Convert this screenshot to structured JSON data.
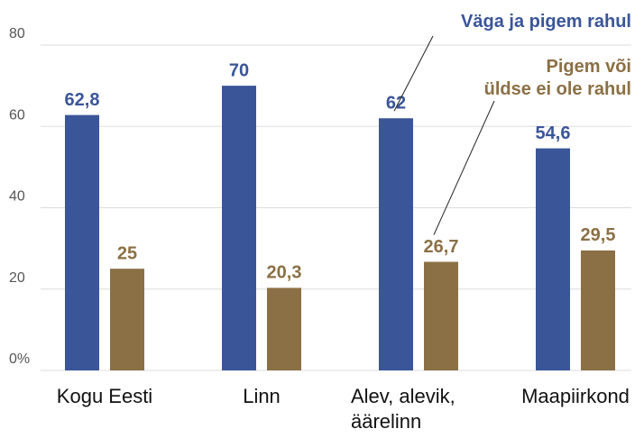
{
  "chart_data": {
    "type": "bar",
    "categories": [
      "Kogu Eesti",
      "Linn",
      "Alev, alevik, äärelinn",
      "Maapiirkond"
    ],
    "series": [
      {
        "name": "Väga ja pigem rahul",
        "color": "#3a5598",
        "values": [
          62.8,
          70,
          62,
          54.6
        ],
        "value_labels": [
          "62,8",
          "70",
          "62",
          "54,6"
        ]
      },
      {
        "name": "Pigem või üldse ei ole rahul",
        "color": "#8b7045",
        "values": [
          25,
          20.3,
          26.7,
          29.5
        ],
        "value_labels": [
          "25",
          "20,3",
          "26,7",
          "29,5"
        ]
      }
    ],
    "ylim": [
      0,
      80
    ],
    "yticks": [
      {
        "value": 0,
        "label": "0%"
      },
      20,
      40,
      60,
      80
    ],
    "grid": true
  }
}
